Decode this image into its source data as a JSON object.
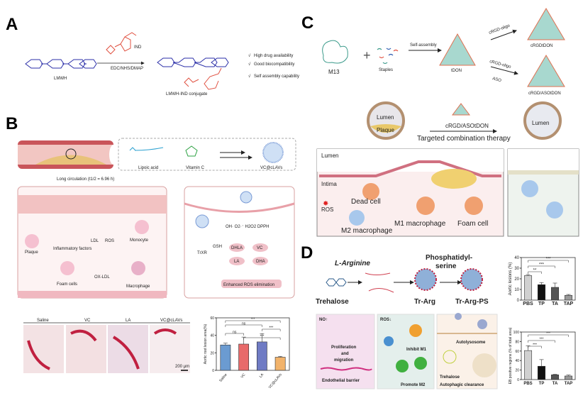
{
  "panels": {
    "A": {
      "label": "A",
      "reagent": "IND",
      "conditions": "EDC/NHS/DMAP",
      "start": "LMWH",
      "product": "LMWH-IND conjugate",
      "benefits": [
        "High drug availability",
        "Good biocompatibility",
        "Self assembly capability"
      ],
      "check_mark": "√"
    },
    "B": {
      "label": "B",
      "lipoic": "Lipoic acid",
      "vitc": "Vitamin C",
      "product": "VC@cLAVs",
      "circulation": "Long circulation (t1/2 = 6.96 h)",
      "cells": [
        "LDL",
        "ROS",
        "Monocyte",
        "Plaque",
        "Inflammatory factors",
        "OX-LDL",
        "Foam cells",
        "Macrophage"
      ],
      "ros_species": "OH·  O2·⁻  H2O2  DPPH",
      "gsh": "GSH",
      "trxr": "TrXR",
      "cycle": [
        "DHLA",
        "VC",
        "LA",
        "DHA"
      ],
      "result": "Enhanced ROS elimination",
      "histology_labels": [
        "Saline",
        "VC",
        "LA",
        "VC@cLAVs"
      ],
      "scale_bar": "200 μm"
    },
    "C": {
      "label": "C",
      "m13": "M13",
      "staples": "Staples",
      "self_assembly": "Self-assembly",
      "tdon": "tDON",
      "cRGD": "cRGD-oligo",
      "aso": "ASO",
      "product1": "cRGDtDON",
      "product2": "cRGD/ASOtDON",
      "lumen": "Lumen",
      "plaque": "Plaque",
      "therapy_agent": "cRGD/ASOtDON",
      "therapy": "Targeted combination therapy",
      "intima": "Intima",
      "ros": "ROS",
      "dead_cell": "Dead cell",
      "m1": "M1 macrophage",
      "m2": "M2 macrophage",
      "foam": "Foam cell"
    },
    "D": {
      "label": "D",
      "arginine": "L-Arginine",
      "ps": "Phosphatidyl-\nserine",
      "ps1": "Phosphatidyl-",
      "ps2": "serine",
      "trehalose": "Trehalose",
      "trarg": "Tr-Arg",
      "trargps": "Tr-Arg-PS",
      "box1_title": "NO↑",
      "box1_text": [
        "Proliferation",
        "and",
        "migration"
      ],
      "box1_bottom": "Endothelial barrier",
      "box2_title": "ROS↓",
      "inhibit": "Inhibit M1",
      "promote": "Promote M2",
      "autolysosome": "Autolysosome",
      "trehalose2": "Trehalose",
      "autophagic": "Autophagic clearance"
    }
  },
  "chart_data": [
    {
      "type": "bar",
      "panel": "B",
      "categories": [
        "Saline",
        "VC",
        "LA",
        "VC@cLAVs"
      ],
      "values": [
        29,
        30,
        32.5,
        15
      ],
      "errors": [
        2,
        8,
        9.5,
        1
      ],
      "colors": [
        "#6b9bd1",
        "#e86a6a",
        "#6f7bc4",
        "#f2b36b"
      ],
      "ylabel": "Aortic root lesion area(%)",
      "ylim": [
        0,
        60
      ],
      "yticks": [
        0,
        20,
        40,
        60
      ],
      "significance": [
        {
          "from": 0,
          "to": 3,
          "label": "***"
        },
        {
          "from": 0,
          "to": 2,
          "label": "ns"
        },
        {
          "from": 2,
          "to": 3,
          "label": "***"
        },
        {
          "from": 0,
          "to": 1,
          "label": "ns"
        },
        {
          "from": 1,
          "to": 3,
          "label": "***"
        }
      ]
    },
    {
      "type": "bar",
      "panel": "D-top",
      "categories": [
        "PBS",
        "TP",
        "TA",
        "TAP"
      ],
      "values": [
        23,
        14.5,
        12,
        4.5
      ],
      "errors": [
        1,
        2,
        4,
        0.8
      ],
      "colors": [
        "#d0d0d0",
        "#111111",
        "#555555",
        "#999999"
      ],
      "ylabel": "Aortic  lesions (%)",
      "ylim": [
        0,
        40
      ],
      "yticks": [
        0,
        10,
        20,
        30,
        40
      ],
      "significance": [
        {
          "from": 0,
          "to": 3,
          "label": "***"
        },
        {
          "from": 0,
          "to": 2,
          "label": "***"
        },
        {
          "from": 0,
          "to": 1,
          "label": "**"
        }
      ]
    },
    {
      "type": "bar",
      "panel": "D-bottom",
      "categories": [
        "PBS",
        "TP",
        "TA",
        "TAP"
      ],
      "values": [
        61,
        28,
        10,
        7.5
      ],
      "errors": [
        10,
        14,
        1,
        2
      ],
      "colors": [
        "#d0d0d0",
        "#111111",
        "#555555",
        "#999999"
      ],
      "ylabel": "EB positive regions (% of total area)",
      "ylim": [
        0,
        100
      ],
      "yticks": [
        0,
        20,
        40,
        60,
        80,
        100
      ],
      "significance": [
        {
          "from": 0,
          "to": 3,
          "label": "***"
        },
        {
          "from": 0,
          "to": 2,
          "label": "***"
        },
        {
          "from": 0,
          "to": 1,
          "label": "***"
        }
      ]
    }
  ]
}
